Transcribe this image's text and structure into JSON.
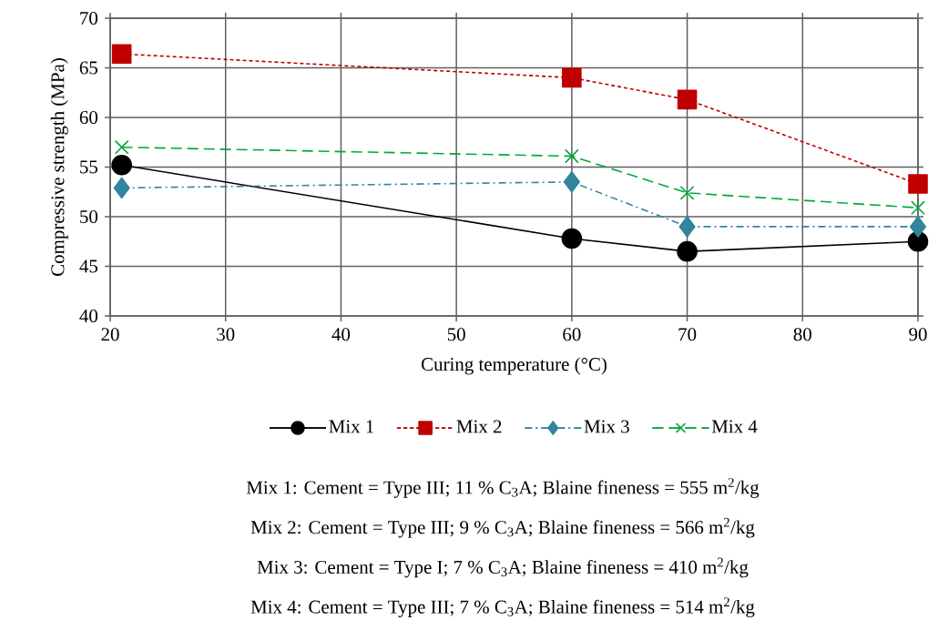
{
  "chart_data": {
    "type": "line",
    "xlabel": "Curing temperature (°C)",
    "ylabel": "Compressive strength (MPa)",
    "x": [
      21,
      60,
      70,
      90
    ],
    "series": [
      {
        "name": "Mix 1",
        "color": "#000000",
        "values": [
          55.2,
          47.8,
          46.5,
          47.5
        ],
        "marker": "circle",
        "line_style": "solid"
      },
      {
        "name": "Mix 2",
        "color": "#c00000",
        "values": [
          66.4,
          64.0,
          61.8,
          53.3
        ],
        "marker": "square",
        "line_style": "dotted"
      },
      {
        "name": "Mix 3",
        "color": "#31859c",
        "values": [
          52.9,
          53.5,
          49.0,
          49.0
        ],
        "marker": "diamond",
        "line_style": "dashdot"
      },
      {
        "name": "Mix 4",
        "color": "#00a83a",
        "values": [
          57.0,
          56.1,
          52.4,
          50.9
        ],
        "marker": "cross",
        "line_style": "dashed"
      }
    ],
    "xlim": [
      20,
      90
    ],
    "xticks": [
      20,
      30,
      40,
      50,
      60,
      70,
      80,
      90
    ],
    "ylim": [
      40,
      70
    ],
    "yticks": [
      40,
      45,
      50,
      55,
      60,
      65,
      70
    ],
    "grid": true,
    "legend": "bottom",
    "annotations": [
      "Mix 1: Cement = Type III; 11 % C$_{3}$A; Blaine fineness = 555 m$^{2}$/kg",
      "Mix 2: Cement = Type III; 9 % C$_{3}$A; Blaine fineness = 566 m$^{2}$/kg",
      "Mix 3: Cement = Type I; 7 % C$_{3}$A; Blaine fineness = 410 m$^{2}$/kg",
      "Mix 4: Cement = Type III; 7 % C$_{3}$A; Blaine fineness = 514 m$^{2}$/kg"
    ]
  }
}
